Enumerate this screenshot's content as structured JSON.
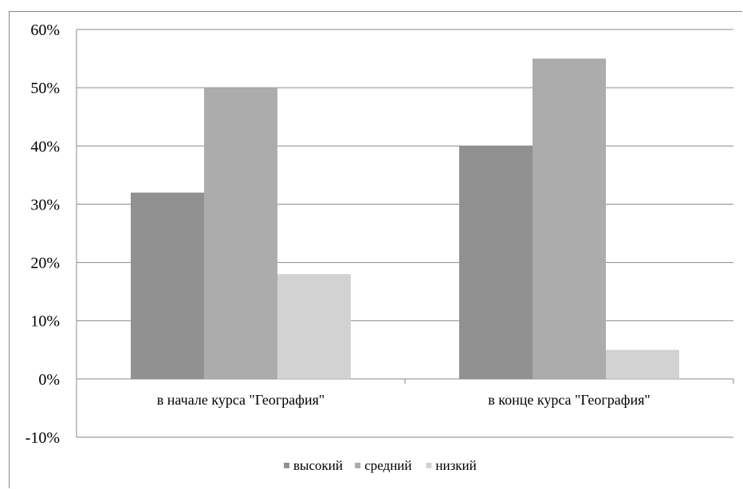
{
  "chart_data": {
    "type": "bar",
    "title": "",
    "xlabel": "",
    "ylabel": "",
    "categories": [
      "в начале курса \"География\"",
      "в конце курса \"География\""
    ],
    "series": [
      {
        "name": "высокий",
        "values": [
          0.32,
          0.4
        ],
        "color": "#919191"
      },
      {
        "name": "средний",
        "values": [
          0.5,
          0.55
        ],
        "color": "#acacac"
      },
      {
        "name": "низкий",
        "values": [
          0.18,
          0.05
        ],
        "color": "#d2d2d2"
      }
    ],
    "ylim": [
      -0.1,
      0.6
    ],
    "yticks": [
      {
        "value": 0.6,
        "label": "60%"
      },
      {
        "value": 0.5,
        "label": "50%"
      },
      {
        "value": 0.4,
        "label": "40%"
      },
      {
        "value": 0.3,
        "label": "30%"
      },
      {
        "value": 0.2,
        "label": "20%"
      },
      {
        "value": 0.1,
        "label": "10%"
      },
      {
        "value": 0.0,
        "label": "0%"
      },
      {
        "value": -0.1,
        "label": "-10%"
      }
    ],
    "grid": true,
    "legend_position": "bottom"
  }
}
